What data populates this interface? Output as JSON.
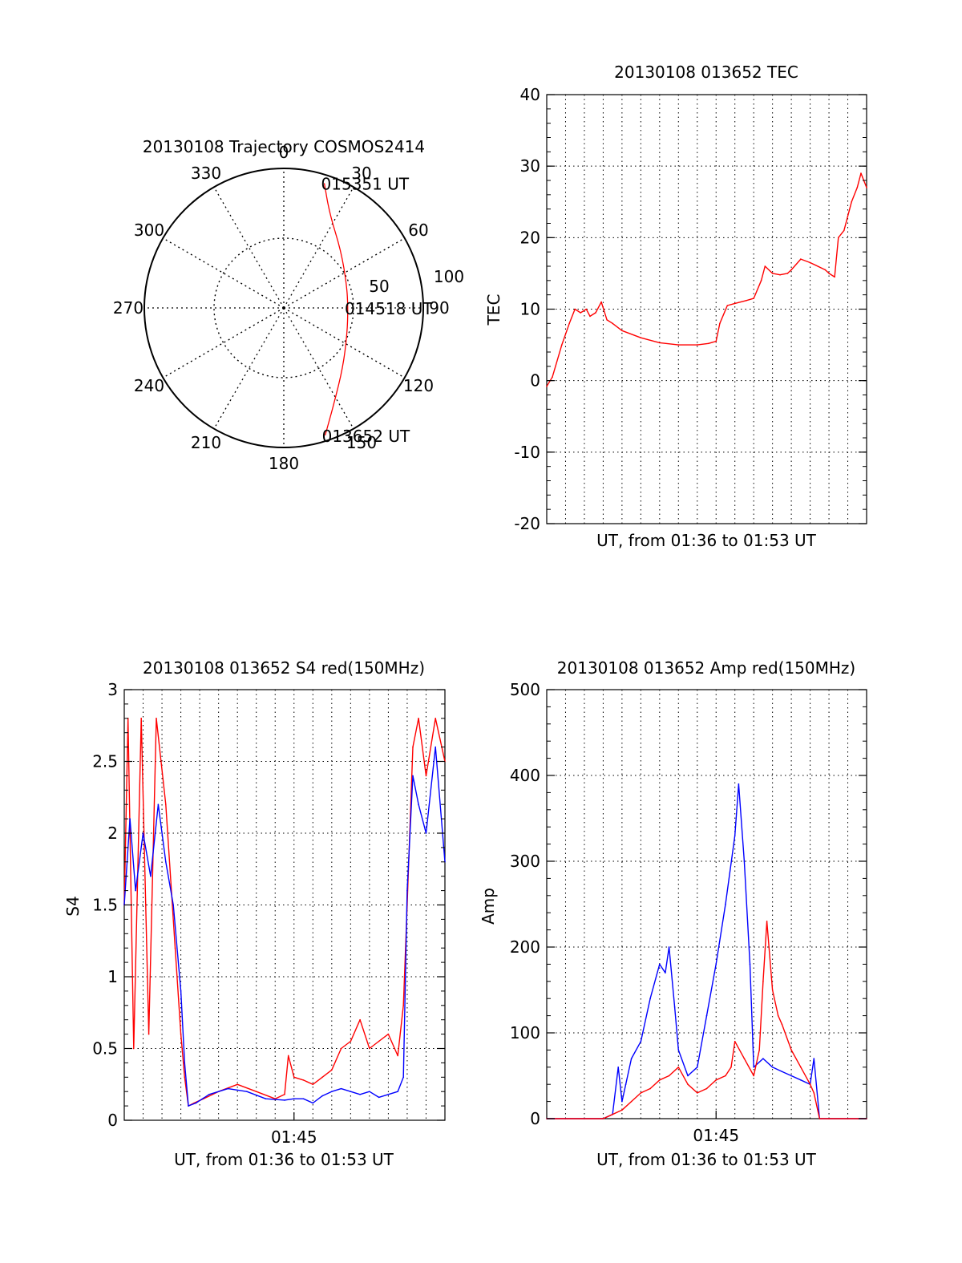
{
  "chart_data": [
    {
      "type": "polar",
      "title": "20130108 Trajectory COSMOS2414",
      "azimuth_labels": [
        "0",
        "30",
        "60",
        "90",
        "120",
        "150",
        "180",
        "210",
        "240",
        "270",
        "300",
        "330"
      ],
      "radial_labels": [
        "50",
        "100"
      ],
      "radial_range": [
        0,
        100
      ],
      "grid": true,
      "trajectory": {
        "color": "#ff0000",
        "points": [
          {
            "az": 18,
            "r": 94
          },
          {
            "az": 26,
            "r": 75
          },
          {
            "az": 45,
            "r": 58
          },
          {
            "az": 70,
            "r": 48
          },
          {
            "az": 90,
            "r": 46
          },
          {
            "az": 112,
            "r": 49
          },
          {
            "az": 135,
            "r": 60
          },
          {
            "az": 152,
            "r": 77
          },
          {
            "az": 162,
            "r": 96
          }
        ],
        "labels": [
          {
            "text": "015351 UT",
            "az": 18,
            "r": 94
          },
          {
            "text": "014518 UT",
            "az": 90,
            "r": 46
          },
          {
            "text": "013652 UT",
            "az": 162,
            "r": 96
          }
        ]
      }
    },
    {
      "type": "line",
      "title": "20130108 013652 TEC",
      "xlabel": "UT, from 01:36 to 01:53 UT",
      "ylabel": "TEC",
      "ylim": [
        -20,
        40
      ],
      "yticks": [
        "-20",
        "-10",
        "0",
        "10",
        "20",
        "30",
        "40"
      ],
      "xlim": [
        0,
        17
      ],
      "x_unit": "minutes after 01:36",
      "grid": true,
      "series": [
        {
          "color": "#ff0000",
          "x": [
            0.0,
            0.3,
            0.8,
            1.2,
            1.5,
            1.8,
            2.1,
            2.3,
            2.6,
            2.9,
            3.2,
            3.5,
            4.0,
            5.0,
            6.0,
            7.0,
            8.0,
            8.6,
            9.0,
            9.2,
            9.6,
            10.0,
            10.6,
            11.0,
            11.4,
            11.6,
            12.0,
            12.4,
            12.8,
            13.0,
            13.5,
            14.0,
            14.8,
            15.0,
            15.3,
            15.5,
            15.8,
            16.2,
            16.5,
            16.7,
            17.0
          ],
          "y": [
            -0.8,
            0.5,
            5,
            8,
            10,
            9.5,
            10,
            9,
            9.5,
            11,
            8.5,
            8,
            7,
            6,
            5.3,
            5,
            5,
            5.2,
            5.5,
            8,
            10.5,
            10.8,
            11.2,
            11.5,
            14,
            16,
            15,
            14.8,
            15,
            15.5,
            17,
            16.5,
            15.5,
            15,
            14.5,
            20,
            21,
            25,
            27,
            29,
            27
          ]
        }
      ]
    },
    {
      "type": "line",
      "title": "20130108 013652 S4 red(150MHz)",
      "xlabel": "UT, from 01:36 to 01:53 UT",
      "ylabel": "S4",
      "ylim": [
        0,
        3
      ],
      "yticks": [
        "0",
        "0.5",
        "1",
        "1.5",
        "2",
        "2.5",
        "3"
      ],
      "xlim": [
        0,
        17
      ],
      "x_unit": "minutes after 01:36",
      "xtick_labels": [
        {
          "x": 9,
          "label": "01:45"
        }
      ],
      "grid": true,
      "series": [
        {
          "color": "#ff0000",
          "x": [
            0.0,
            0.2,
            0.5,
            0.9,
            1.3,
            1.7,
            2.2,
            2.7,
            3.0,
            3.2,
            3.4,
            3.7,
            4.2,
            5.0,
            6.0,
            7.0,
            8.0,
            8.5,
            8.7,
            9.0,
            9.5,
            10.0,
            10.5,
            11.0,
            11.5,
            12.0,
            12.5,
            13.0,
            13.5,
            14.0,
            14.5,
            14.8,
            15.0,
            15.3,
            15.6,
            16.0,
            16.5,
            17.0
          ],
          "y": [
            1.5,
            2.8,
            0.5,
            2.8,
            0.6,
            2.8,
            2.2,
            1.2,
            0.6,
            0.3,
            0.1,
            0.12,
            0.15,
            0.2,
            0.25,
            0.2,
            0.15,
            0.18,
            0.45,
            0.3,
            0.28,
            0.25,
            0.3,
            0.35,
            0.5,
            0.55,
            0.7,
            0.5,
            0.55,
            0.6,
            0.45,
            0.8,
            1.5,
            2.6,
            2.8,
            2.4,
            2.8,
            2.5
          ]
        },
        {
          "color": "#0000ff",
          "x": [
            0.0,
            0.3,
            0.6,
            1.0,
            1.4,
            1.8,
            2.2,
            2.6,
            3.0,
            3.2,
            3.4,
            3.8,
            4.5,
            5.5,
            6.5,
            7.5,
            8.5,
            9.0,
            9.5,
            10.0,
            10.5,
            11.0,
            11.5,
            12.0,
            12.5,
            13.0,
            13.5,
            14.0,
            14.5,
            14.8,
            15.0,
            15.3,
            15.6,
            16.0,
            16.5,
            17.0
          ],
          "y": [
            1.5,
            2.1,
            1.6,
            2.0,
            1.7,
            2.2,
            1.8,
            1.5,
            0.9,
            0.4,
            0.1,
            0.12,
            0.18,
            0.22,
            0.2,
            0.15,
            0.14,
            0.15,
            0.15,
            0.12,
            0.17,
            0.2,
            0.22,
            0.2,
            0.18,
            0.2,
            0.16,
            0.18,
            0.2,
            0.3,
            1.6,
            2.4,
            2.2,
            2.0,
            2.6,
            1.8
          ]
        }
      ]
    },
    {
      "type": "line",
      "title": "20130108 013652 Amp red(150MHz)",
      "xlabel": "UT, from 01:36 to 01:53 UT",
      "ylabel": "Amp",
      "ylim": [
        0,
        500
      ],
      "yticks": [
        "0",
        "100",
        "200",
        "300",
        "400",
        "500"
      ],
      "xlim": [
        0,
        17
      ],
      "x_unit": "minutes after 01:36",
      "xtick_labels": [
        {
          "x": 9,
          "label": "01:45"
        }
      ],
      "grid": true,
      "series": [
        {
          "color": "#0000ff",
          "x": [
            0.0,
            1.0,
            2.0,
            3.0,
            3.5,
            3.8,
            4.0,
            4.2,
            4.5,
            5.0,
            5.5,
            6.0,
            6.3,
            6.5,
            6.8,
            7.0,
            7.5,
            8.0,
            8.5,
            9.0,
            9.5,
            10.0,
            10.2,
            10.5,
            10.8,
            11.0,
            11.5,
            12.0,
            12.5,
            13.0,
            13.5,
            14.0,
            14.2,
            14.5,
            15.0,
            16.0,
            17.0
          ],
          "y": [
            0,
            0,
            0,
            0,
            5,
            60,
            20,
            40,
            70,
            90,
            140,
            180,
            170,
            200,
            130,
            80,
            50,
            60,
            120,
            180,
            250,
            330,
            390,
            300,
            180,
            60,
            70,
            60,
            55,
            50,
            45,
            40,
            70,
            0,
            0,
            0,
            0
          ]
        },
        {
          "color": "#ff0000",
          "x": [
            0.0,
            3.0,
            3.5,
            4.0,
            4.5,
            5.0,
            5.5,
            6.0,
            6.5,
            7.0,
            7.5,
            8.0,
            8.5,
            9.0,
            9.5,
            9.8,
            10.0,
            10.5,
            11.0,
            11.3,
            11.5,
            11.7,
            12.0,
            12.3,
            12.5,
            13.0,
            13.5,
            14.0,
            14.2,
            14.5,
            15.0,
            17.0
          ],
          "y": [
            0,
            0,
            5,
            10,
            20,
            30,
            35,
            45,
            50,
            60,
            40,
            30,
            35,
            45,
            50,
            60,
            90,
            70,
            50,
            80,
            160,
            230,
            150,
            120,
            110,
            80,
            60,
            40,
            30,
            0,
            0,
            0
          ]
        }
      ]
    }
  ]
}
